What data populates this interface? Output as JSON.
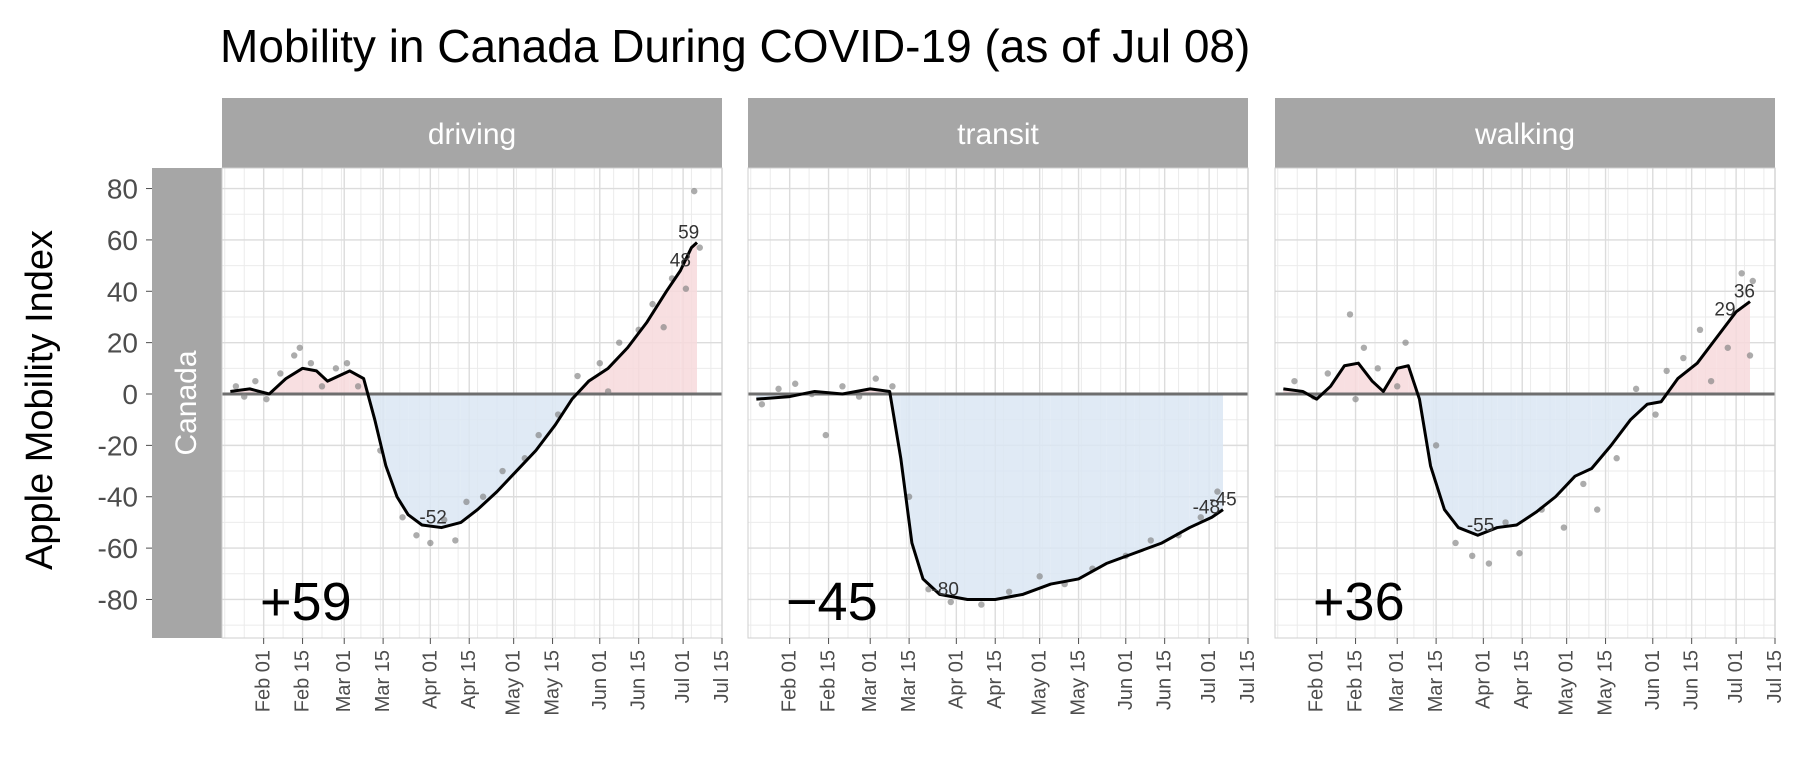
{
  "chart_data": {
    "type": "line",
    "title": "Mobility in Canada During COVID-19 (as of Jul 08)",
    "ylabel": "Apple Mobility Index",
    "xlabel": "",
    "row_label": "Canada",
    "ylim": [
      -95,
      88
    ],
    "yticks": [
      -80,
      -60,
      -40,
      -20,
      0,
      20,
      40,
      60,
      80
    ],
    "ytick_labels": [
      "-80",
      "-60",
      "-40",
      "-20",
      "0",
      "20",
      "40",
      "60",
      "80"
    ],
    "xlim": [
      "2020-01-17",
      "2020-07-15"
    ],
    "xticks": [
      "2020-02-01",
      "2020-02-15",
      "2020-03-01",
      "2020-03-15",
      "2020-04-01",
      "2020-04-15",
      "2020-05-01",
      "2020-05-15",
      "2020-06-01",
      "2020-06-15",
      "2020-07-01",
      "2020-07-15"
    ],
    "xtick_labels": [
      "Feb 01",
      "Feb 15",
      "Mar 01",
      "Mar 15",
      "Apr 01",
      "Apr 15",
      "May 01",
      "May 15",
      "Jun 01",
      "Jun 15",
      "Jul 01",
      "Jul 15"
    ],
    "grid": true,
    "positive_fill_color": "#f7d9dc",
    "negative_fill_color": "#dbe6f3",
    "line_color": "#000000",
    "point_color": "#7f7f7f",
    "strip_color": "#a6a6a6",
    "panels": [
      {
        "name": "driving",
        "big_label": "+59",
        "labels": [
          {
            "date": "2020-04-02",
            "value": -52,
            "text": "-52"
          },
          {
            "date": "2020-06-30",
            "value": 48,
            "text": "48"
          },
          {
            "date": "2020-07-03",
            "value": 59,
            "text": "59"
          }
        ],
        "trend": [
          {
            "date": "2020-01-20",
            "value": 1
          },
          {
            "date": "2020-01-27",
            "value": 2
          },
          {
            "date": "2020-02-03",
            "value": 0
          },
          {
            "date": "2020-02-09",
            "value": 6
          },
          {
            "date": "2020-02-15",
            "value": 10
          },
          {
            "date": "2020-02-20",
            "value": 9
          },
          {
            "date": "2020-02-24",
            "value": 5
          },
          {
            "date": "2020-02-28",
            "value": 7
          },
          {
            "date": "2020-03-03",
            "value": 9
          },
          {
            "date": "2020-03-08",
            "value": 6
          },
          {
            "date": "2020-03-12",
            "value": -10
          },
          {
            "date": "2020-03-16",
            "value": -28
          },
          {
            "date": "2020-03-20",
            "value": -40
          },
          {
            "date": "2020-03-24",
            "value": -47
          },
          {
            "date": "2020-03-29",
            "value": -51
          },
          {
            "date": "2020-04-05",
            "value": -52
          },
          {
            "date": "2020-04-12",
            "value": -50
          },
          {
            "date": "2020-04-18",
            "value": -45
          },
          {
            "date": "2020-04-25",
            "value": -38
          },
          {
            "date": "2020-05-02",
            "value": -30
          },
          {
            "date": "2020-05-09",
            "value": -22
          },
          {
            "date": "2020-05-16",
            "value": -12
          },
          {
            "date": "2020-05-22",
            "value": -2
          },
          {
            "date": "2020-05-28",
            "value": 5
          },
          {
            "date": "2020-06-04",
            "value": 10
          },
          {
            "date": "2020-06-11",
            "value": 18
          },
          {
            "date": "2020-06-18",
            "value": 28
          },
          {
            "date": "2020-06-25",
            "value": 40
          },
          {
            "date": "2020-06-30",
            "value": 48
          },
          {
            "date": "2020-07-04",
            "value": 57
          },
          {
            "date": "2020-07-06",
            "value": 59
          }
        ],
        "points": [
          {
            "date": "2020-01-22",
            "value": 3
          },
          {
            "date": "2020-01-25",
            "value": -1
          },
          {
            "date": "2020-01-29",
            "value": 5
          },
          {
            "date": "2020-02-02",
            "value": -2
          },
          {
            "date": "2020-02-07",
            "value": 8
          },
          {
            "date": "2020-02-12",
            "value": 15
          },
          {
            "date": "2020-02-14",
            "value": 18
          },
          {
            "date": "2020-02-18",
            "value": 12
          },
          {
            "date": "2020-02-22",
            "value": 3
          },
          {
            "date": "2020-02-27",
            "value": 10
          },
          {
            "date": "2020-03-02",
            "value": 12
          },
          {
            "date": "2020-03-06",
            "value": 3
          },
          {
            "date": "2020-03-14",
            "value": -22
          },
          {
            "date": "2020-03-22",
            "value": -48
          },
          {
            "date": "2020-03-27",
            "value": -55
          },
          {
            "date": "2020-04-01",
            "value": -58
          },
          {
            "date": "2020-04-06",
            "value": -49
          },
          {
            "date": "2020-04-10",
            "value": -57
          },
          {
            "date": "2020-04-14",
            "value": -42
          },
          {
            "date": "2020-04-20",
            "value": -40
          },
          {
            "date": "2020-04-27",
            "value": -30
          },
          {
            "date": "2020-05-05",
            "value": -25
          },
          {
            "date": "2020-05-10",
            "value": -16
          },
          {
            "date": "2020-05-17",
            "value": -8
          },
          {
            "date": "2020-05-24",
            "value": 7
          },
          {
            "date": "2020-06-01",
            "value": 12
          },
          {
            "date": "2020-06-04",
            "value": 1
          },
          {
            "date": "2020-06-08",
            "value": 20
          },
          {
            "date": "2020-06-15",
            "value": 25
          },
          {
            "date": "2020-06-20",
            "value": 35
          },
          {
            "date": "2020-06-24",
            "value": 26
          },
          {
            "date": "2020-06-27",
            "value": 45
          },
          {
            "date": "2020-07-02",
            "value": 41
          },
          {
            "date": "2020-07-05",
            "value": 79
          },
          {
            "date": "2020-07-07",
            "value": 57
          }
        ]
      },
      {
        "name": "transit",
        "big_label": "−45",
        "labels": [
          {
            "date": "2020-03-28",
            "value": -80,
            "text": "-80"
          },
          {
            "date": "2020-06-30",
            "value": -48,
            "text": "-48"
          },
          {
            "date": "2020-07-06",
            "value": -45,
            "text": "-45"
          }
        ],
        "trend": [
          {
            "date": "2020-01-20",
            "value": -2
          },
          {
            "date": "2020-02-01",
            "value": -1
          },
          {
            "date": "2020-02-10",
            "value": 1
          },
          {
            "date": "2020-02-20",
            "value": 0
          },
          {
            "date": "2020-03-01",
            "value": 2
          },
          {
            "date": "2020-03-08",
            "value": 1
          },
          {
            "date": "2020-03-12",
            "value": -25
          },
          {
            "date": "2020-03-16",
            "value": -58
          },
          {
            "date": "2020-03-20",
            "value": -72
          },
          {
            "date": "2020-03-26",
            "value": -78
          },
          {
            "date": "2020-04-05",
            "value": -80
          },
          {
            "date": "2020-04-15",
            "value": -80
          },
          {
            "date": "2020-04-25",
            "value": -78
          },
          {
            "date": "2020-05-05",
            "value": -74
          },
          {
            "date": "2020-05-15",
            "value": -72
          },
          {
            "date": "2020-05-25",
            "value": -66
          },
          {
            "date": "2020-06-04",
            "value": -62
          },
          {
            "date": "2020-06-14",
            "value": -58
          },
          {
            "date": "2020-06-24",
            "value": -52
          },
          {
            "date": "2020-07-02",
            "value": -48
          },
          {
            "date": "2020-07-06",
            "value": -45
          }
        ],
        "points": [
          {
            "date": "2020-01-22",
            "value": -4
          },
          {
            "date": "2020-01-28",
            "value": 2
          },
          {
            "date": "2020-02-03",
            "value": 4
          },
          {
            "date": "2020-02-09",
            "value": 0
          },
          {
            "date": "2020-02-14",
            "value": -16
          },
          {
            "date": "2020-02-20",
            "value": 3
          },
          {
            "date": "2020-02-26",
            "value": -1
          },
          {
            "date": "2020-03-03",
            "value": 6
          },
          {
            "date": "2020-03-09",
            "value": 3
          },
          {
            "date": "2020-03-15",
            "value": -40
          },
          {
            "date": "2020-03-22",
            "value": -76
          },
          {
            "date": "2020-03-30",
            "value": -81
          },
          {
            "date": "2020-04-10",
            "value": -82
          },
          {
            "date": "2020-04-20",
            "value": -77
          },
          {
            "date": "2020-05-01",
            "value": -71
          },
          {
            "date": "2020-05-10",
            "value": -74
          },
          {
            "date": "2020-05-20",
            "value": -68
          },
          {
            "date": "2020-06-01",
            "value": -63
          },
          {
            "date": "2020-06-10",
            "value": -57
          },
          {
            "date": "2020-06-20",
            "value": -55
          },
          {
            "date": "2020-06-28",
            "value": -48
          },
          {
            "date": "2020-07-04",
            "value": -38
          }
        ]
      },
      {
        "name": "walking",
        "big_label": "+36",
        "labels": [
          {
            "date": "2020-03-31",
            "value": -55,
            "text": "-55"
          },
          {
            "date": "2020-06-27",
            "value": 29,
            "text": "29"
          },
          {
            "date": "2020-07-04",
            "value": 36,
            "text": "36"
          }
        ],
        "trend": [
          {
            "date": "2020-01-20",
            "value": 2
          },
          {
            "date": "2020-01-27",
            "value": 1
          },
          {
            "date": "2020-02-01",
            "value": -2
          },
          {
            "date": "2020-02-06",
            "value": 3
          },
          {
            "date": "2020-02-11",
            "value": 11
          },
          {
            "date": "2020-02-16",
            "value": 12
          },
          {
            "date": "2020-02-21",
            "value": 5
          },
          {
            "date": "2020-02-25",
            "value": 1
          },
          {
            "date": "2020-03-01",
            "value": 10
          },
          {
            "date": "2020-03-05",
            "value": 11
          },
          {
            "date": "2020-03-09",
            "value": -2
          },
          {
            "date": "2020-03-13",
            "value": -28
          },
          {
            "date": "2020-03-18",
            "value": -45
          },
          {
            "date": "2020-03-23",
            "value": -52
          },
          {
            "date": "2020-03-30",
            "value": -55
          },
          {
            "date": "2020-04-06",
            "value": -52
          },
          {
            "date": "2020-04-13",
            "value": -51
          },
          {
            "date": "2020-04-20",
            "value": -46
          },
          {
            "date": "2020-04-27",
            "value": -40
          },
          {
            "date": "2020-05-04",
            "value": -32
          },
          {
            "date": "2020-05-10",
            "value": -29
          },
          {
            "date": "2020-05-17",
            "value": -20
          },
          {
            "date": "2020-05-24",
            "value": -10
          },
          {
            "date": "2020-05-30",
            "value": -4
          },
          {
            "date": "2020-06-04",
            "value": -3
          },
          {
            "date": "2020-06-10",
            "value": 6
          },
          {
            "date": "2020-06-17",
            "value": 12
          },
          {
            "date": "2020-06-24",
            "value": 22
          },
          {
            "date": "2020-07-01",
            "value": 32
          },
          {
            "date": "2020-07-06",
            "value": 36
          }
        ],
        "points": [
          {
            "date": "2020-01-24",
            "value": 5
          },
          {
            "date": "2020-01-31",
            "value": -1
          },
          {
            "date": "2020-02-05",
            "value": 8
          },
          {
            "date": "2020-02-13",
            "value": 31
          },
          {
            "date": "2020-02-15",
            "value": -2
          },
          {
            "date": "2020-02-18",
            "value": 18
          },
          {
            "date": "2020-02-23",
            "value": 10
          },
          {
            "date": "2020-03-01",
            "value": 3
          },
          {
            "date": "2020-03-04",
            "value": 20
          },
          {
            "date": "2020-03-15",
            "value": -20
          },
          {
            "date": "2020-03-22",
            "value": -58
          },
          {
            "date": "2020-03-28",
            "value": -63
          },
          {
            "date": "2020-04-03",
            "value": -66
          },
          {
            "date": "2020-04-09",
            "value": -50
          },
          {
            "date": "2020-04-14",
            "value": -62
          },
          {
            "date": "2020-04-22",
            "value": -45
          },
          {
            "date": "2020-04-30",
            "value": -52
          },
          {
            "date": "2020-05-07",
            "value": -35
          },
          {
            "date": "2020-05-12",
            "value": -45
          },
          {
            "date": "2020-05-19",
            "value": -25
          },
          {
            "date": "2020-05-26",
            "value": 2
          },
          {
            "date": "2020-06-02",
            "value": -8
          },
          {
            "date": "2020-06-06",
            "value": 9
          },
          {
            "date": "2020-06-12",
            "value": 14
          },
          {
            "date": "2020-06-18",
            "value": 25
          },
          {
            "date": "2020-06-22",
            "value": 5
          },
          {
            "date": "2020-06-28",
            "value": 18
          },
          {
            "date": "2020-07-03",
            "value": 47
          },
          {
            "date": "2020-07-06",
            "value": 15
          },
          {
            "date": "2020-07-07",
            "value": 44
          }
        ]
      }
    ]
  }
}
